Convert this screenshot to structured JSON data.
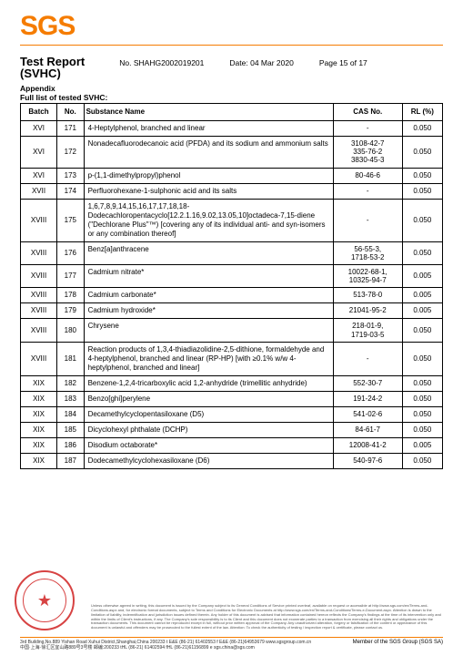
{
  "logo": "SGS",
  "header": {
    "title": "Test Report",
    "no_label": "No.",
    "no": "SHAHG2002019201",
    "date_label": "Date:",
    "date": "04 Mar 2020",
    "page_label": "Page",
    "page": "15 of 17",
    "subtitle": "(SVHC)",
    "appendix": "Appendix",
    "list_label": "Full list of tested SVHC:"
  },
  "columns": {
    "batch": "Batch",
    "no": "No.",
    "name": "Substance Name",
    "cas": "CAS No.",
    "rl": "RL (%)"
  },
  "rows": [
    {
      "batch": "XVI",
      "no": "171",
      "name": "4-Heptylphenol, branched and linear",
      "cas": "-",
      "rl": "0.050"
    },
    {
      "batch": "XVI",
      "no": "172",
      "name": "Nonadecafluorodecanoic acid (PFDA) and its sodium and ammonium salts",
      "cas": "3108-42-7\n335-76-2\n3830-45-3",
      "rl": "0.050"
    },
    {
      "batch": "XVI",
      "no": "173",
      "name": "p-(1,1-dimethylpropyl)phenol",
      "cas": "80-46-6",
      "rl": "0.050"
    },
    {
      "batch": "XVII",
      "no": "174",
      "name": "Perfluorohexane-1-sulphonic acid and its salts",
      "cas": "-",
      "rl": "0.050"
    },
    {
      "batch": "XVIII",
      "no": "175",
      "name": "1,6,7,8,9,14,15,16,17,17,18,18-Dodecachloropentacyclo[12.2.1.16,9.02,13.05,10]octadeca-7,15-diene (\"Dechlorane Plus\"™) [covering any of its individual anti- and syn-isomers or any combination thereof]",
      "cas": "-",
      "rl": "0.050"
    },
    {
      "batch": "XVIII",
      "no": "176",
      "name": "Benz[a]anthracene",
      "cas": "56-55-3,\n1718-53-2",
      "rl": "0.050"
    },
    {
      "batch": "XVIII",
      "no": "177",
      "name": "Cadmium nitrate*",
      "cas": "10022-68-1,\n10325-94-7",
      "rl": "0.005"
    },
    {
      "batch": "XVIII",
      "no": "178",
      "name": "Cadmium carbonate*",
      "cas": "513-78-0",
      "rl": "0.005"
    },
    {
      "batch": "XVIII",
      "no": "179",
      "name": "Cadmium hydroxide*",
      "cas": "21041-95-2",
      "rl": "0.005"
    },
    {
      "batch": "XVIII",
      "no": "180",
      "name": "Chrysene",
      "cas": "218-01-9,\n1719-03-5",
      "rl": "0.050"
    },
    {
      "batch": "XVIII",
      "no": "181",
      "name": "Reaction products of 1,3,4-thiadiazolidine-2,5-dithione, formaldehyde and 4-heptylphenol, branched and linear (RP-HP) [with ≥0.1% w/w 4-heptylphenol, branched and linear]",
      "cas": "-",
      "rl": "0.050"
    },
    {
      "batch": "XIX",
      "no": "182",
      "name": "Benzene-1,2,4-tricarboxylic acid 1,2-anhydride (trimellitic anhydride)",
      "cas": "552-30-7",
      "rl": "0.050"
    },
    {
      "batch": "XIX",
      "no": "183",
      "name": "Benzo[ghi]perylene",
      "cas": "191-24-2",
      "rl": "0.050"
    },
    {
      "batch": "XIX",
      "no": "184",
      "name": "Decamethylcyclopentasiloxane (D5)",
      "cas": "541-02-6",
      "rl": "0.050"
    },
    {
      "batch": "XIX",
      "no": "185",
      "name": "Dicyclohexyl phthalate (DCHP)",
      "cas": "84-61-7",
      "rl": "0.050"
    },
    {
      "batch": "XIX",
      "no": "186",
      "name": "Disodium octaborate*",
      "cas": "12008-41-2",
      "rl": "0.005"
    },
    {
      "batch": "XIX",
      "no": "187",
      "name": "Dodecamethylcyclohexasiloxane (D6)",
      "cas": "540-97-6",
      "rl": "0.050"
    }
  ],
  "disclaimer": "Unless otherwise agreed in writing, this document is issued by the Company subject to its General Conditions of Service printed overleaf, available on request or accessible at http://www.sgs.com/en/Terms-and-Conditions.aspx and, for electronic format documents, subject to Terms and Conditions for Electronic Documents at http://www.sgs.com/en/Terms-and-Conditions/Terms-e-Document.aspx. Attention is drawn to the limitation of liability, indemnification and jurisdiction issues defined therein. Any holder of this document is advised that information contained hereon reflects the Company's findings at the time of its intervention only and within the limits of Client's instructions, if any. The Company's sole responsibility is to its Client and this document does not exonerate parties to a transaction from exercising all their rights and obligations under the transaction documents. This document cannot be reproduced except in full, without prior written approval of the Company. Any unauthorized alteration, forgery or falsification of the content or appearance of this document is unlawful and offenders may be prosecuted to the fullest extent of the law. Attention: To check the authenticity of testing / inspection report & certificate, please contact us.",
  "contact_lines": [
    "3rd Building,No.889 Yishan Road Xuhui District,Shanghai,China  200233    t E&E (86-21) 61402553  f E&E (86-21)64953679  www.sgsgroup.com.cn",
    "中国·上海·徐汇区宜山路889号3号楼    邮编:200233    tHL (86-21) 61402594  fHL (86-21)61156899    e sgs.china@sgs.com"
  ],
  "footer": "Member of the SGS Group (SGS SA)"
}
